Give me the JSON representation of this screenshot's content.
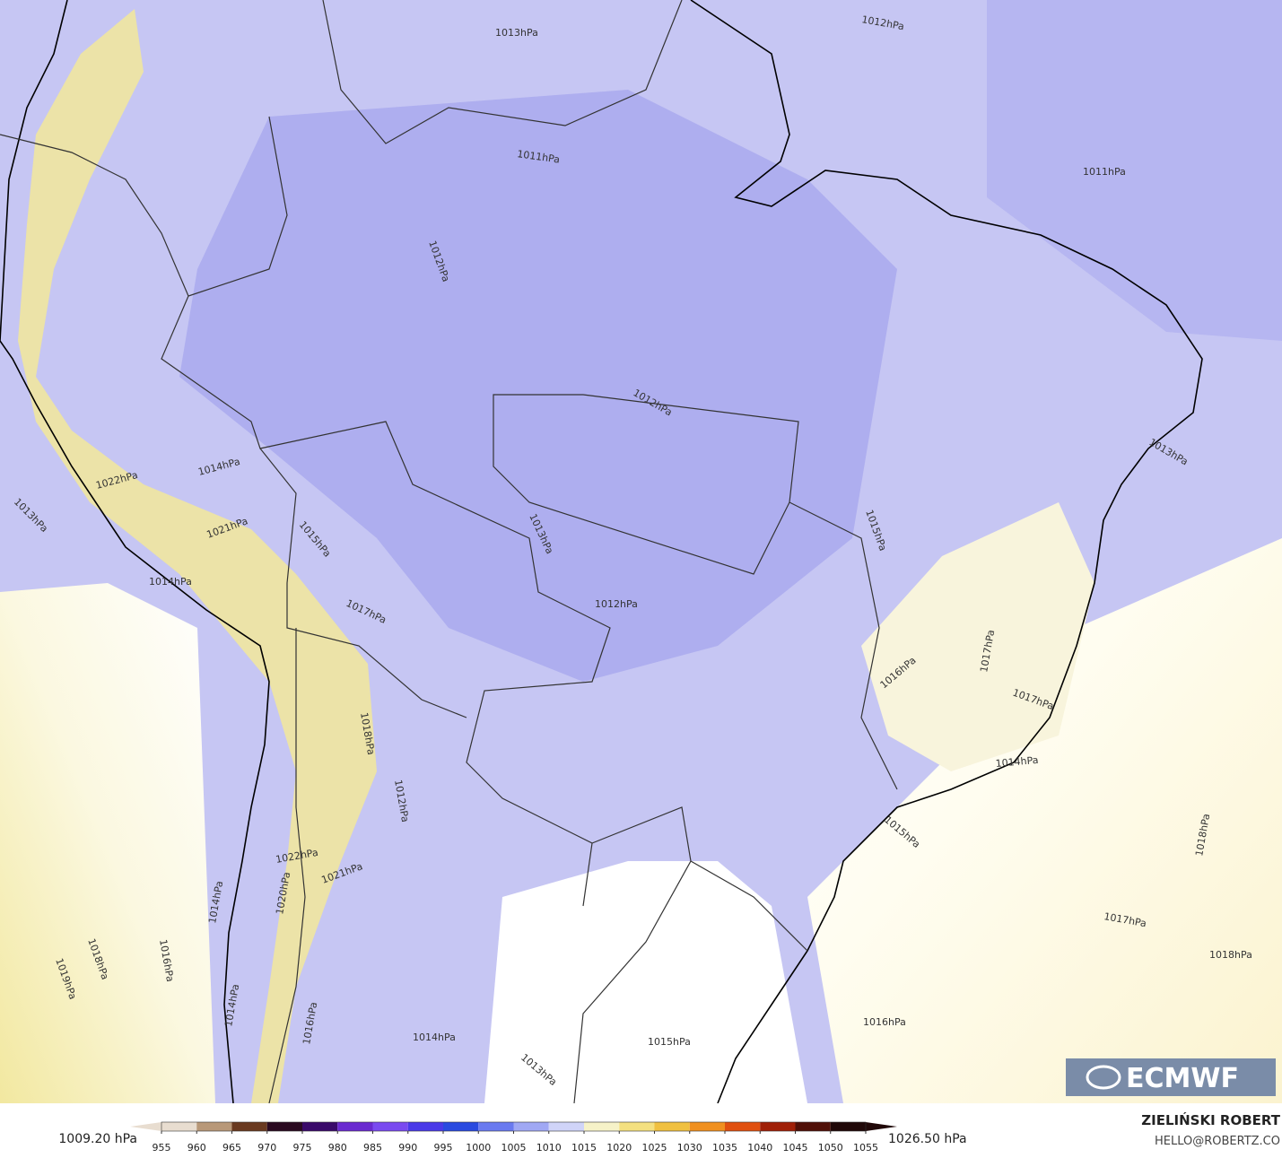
{
  "contour_labels": [
    "1012hPa",
    "1013hPa",
    "1011hPa",
    "1012hPa",
    "1011hPa",
    "1012hPa",
    "1012hPa",
    "1013hPa",
    "1013hPa",
    "1015hPa",
    "1012hPa",
    "1014hPa",
    "1013hPa",
    "1022hPa",
    "1021hPa",
    "1014hPa",
    "1015hPa",
    "1017hPa",
    "1018hPa",
    "1022hPa",
    "1021hPa",
    "1014hPa",
    "1020hPa",
    "1018hPa",
    "1019hPa",
    "1016hPa",
    "1014hPa",
    "1015hPa",
    "1016hPa",
    "1017hPa",
    "1014hPa",
    "1017hPa",
    "1018hPa",
    "1018hPa",
    "1017hPa",
    "1016hPa",
    "1015hPa",
    "1013hPa",
    "1014hPa",
    "1016hPa"
  ],
  "logo": "ECMWF",
  "colorbar": {
    "min_label": "1009.20 hPa",
    "max_label": "1026.50 hPa",
    "ticks": [
      955,
      960,
      965,
      970,
      975,
      980,
      985,
      990,
      995,
      1000,
      1005,
      1010,
      1015,
      1020,
      1025,
      1030,
      1035,
      1040,
      1045,
      1050,
      1055
    ],
    "colors": [
      "#e8ddd0",
      "#b89878",
      "#6a3a20",
      "#2a0a20",
      "#3a0a6a",
      "#6a2ad0",
      "#7a4af0",
      "#4a3ae8",
      "#2a4ae0",
      "#6a7af0",
      "#a0a8f4",
      "#d0d4f8",
      "#f6f2c8",
      "#f4e080",
      "#f0c040",
      "#f09020",
      "#e05010",
      "#a02008",
      "#501008",
      "#200808"
    ]
  },
  "author": "ZIELIŃSKI ROBERT",
  "email": "HELLO@ROBERTZ.CO"
}
